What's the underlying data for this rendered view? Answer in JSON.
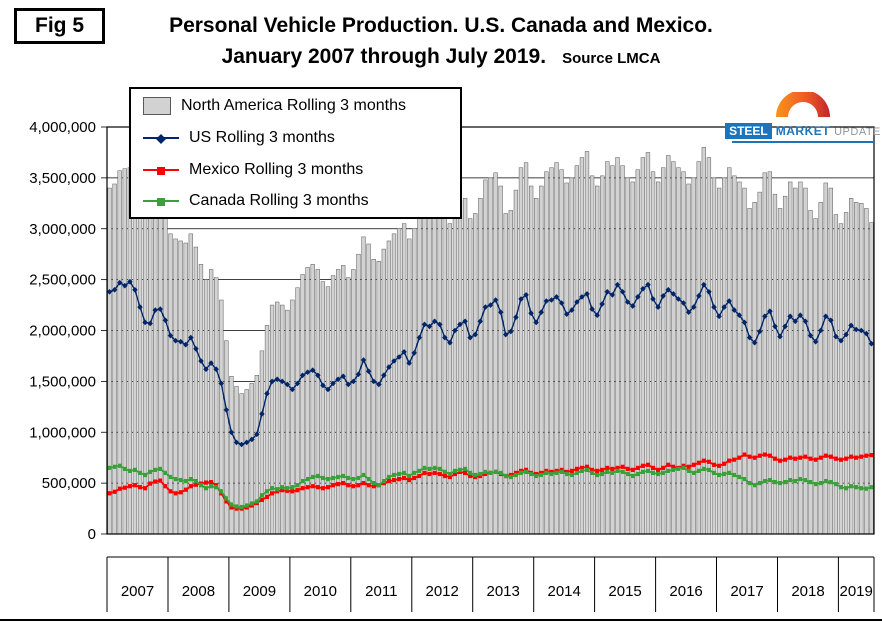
{
  "figure": {
    "fig_label": "Fig 5",
    "title_line1": "Personal Vehicle Production. U.S. Canada and Mexico.",
    "title_line2": "January 2007 through July 2019.",
    "source": "Source LMCA"
  },
  "logo": {
    "word1": "STEEL",
    "word2": "MARKET",
    "word3": "UPDATE"
  },
  "chart_data": {
    "type": "bar",
    "title": "Personal Vehicle Production. U.S. Canada and Mexico. January 2007 through July 2019.",
    "xlabel": "",
    "ylabel": "",
    "x": {
      "start": "2007-01",
      "end": "2019-07",
      "points": 151,
      "year_labels": [
        "2007",
        "2008",
        "2009",
        "2010",
        "2011",
        "2012",
        "2013",
        "2014",
        "2015",
        "2016",
        "2017",
        "2018",
        "2019"
      ]
    },
    "y_axis": {
      "min": 0,
      "max": 4000000,
      "tick_step": 500000,
      "tick_labels": [
        "4,000,000",
        "3,500,000",
        "3,000,000",
        "2,500,000",
        "2,000,000",
        "1,500,000",
        "1,000,000",
        "500,000",
        "0"
      ]
    },
    "grid": "horizontal",
    "legend_position": "top-left-inside",
    "values_unit": "vehicles, stored in thousands",
    "series": [
      {
        "id": "north-america",
        "name": "North America Rolling 3 months",
        "type": "bar",
        "color": "#d2d2d2",
        "border": "#5a5a5a",
        "values": [
          3400,
          3440,
          3570,
          3590,
          3600,
          3520,
          3330,
          3140,
          3180,
          3370,
          3380,
          3250,
          2950,
          2900,
          2880,
          2860,
          2950,
          2820,
          2650,
          2500,
          2600,
          2520,
          2300,
          1900,
          1550,
          1450,
          1380,
          1420,
          1480,
          1560,
          1800,
          2050,
          2250,
          2280,
          2250,
          2200,
          2300,
          2420,
          2550,
          2620,
          2650,
          2600,
          2480,
          2430,
          2540,
          2600,
          2640,
          2520,
          2600,
          2750,
          2920,
          2850,
          2700,
          2680,
          2800,
          2880,
          2950,
          3000,
          3050,
          2900,
          3000,
          3150,
          3300,
          3250,
          3300,
          3280,
          3100,
          3050,
          3200,
          3280,
          3300,
          3100,
          3150,
          3300,
          3480,
          3500,
          3550,
          3420,
          3150,
          3180,
          3380,
          3600,
          3650,
          3420,
          3300,
          3420,
          3560,
          3600,
          3650,
          3580,
          3450,
          3500,
          3620,
          3700,
          3760,
          3520,
          3420,
          3520,
          3660,
          3620,
          3700,
          3620,
          3500,
          3460,
          3580,
          3700,
          3750,
          3560,
          3460,
          3600,
          3720,
          3660,
          3600,
          3560,
          3440,
          3500,
          3660,
          3800,
          3700,
          3500,
          3400,
          3500,
          3600,
          3520,
          3460,
          3400,
          3200,
          3260,
          3360,
          3550,
          3560,
          3340,
          3200,
          3320,
          3460,
          3400,
          3460,
          3400,
          3180,
          3100,
          3260,
          3450,
          3400,
          3140,
          3050,
          3160,
          3300,
          3260,
          3250,
          3200,
          3060
        ]
      },
      {
        "id": "us",
        "name": "US Rolling 3 months",
        "type": "line",
        "color": "#002569",
        "marker": "diamond",
        "values": [
          2380,
          2400,
          2470,
          2440,
          2480,
          2400,
          2230,
          2080,
          2070,
          2200,
          2210,
          2100,
          1950,
          1900,
          1890,
          1860,
          1930,
          1820,
          1700,
          1620,
          1680,
          1620,
          1480,
          1220,
          1000,
          900,
          880,
          900,
          930,
          980,
          1180,
          1380,
          1500,
          1520,
          1500,
          1470,
          1420,
          1480,
          1560,
          1590,
          1610,
          1560,
          1460,
          1420,
          1480,
          1520,
          1550,
          1470,
          1500,
          1570,
          1710,
          1600,
          1500,
          1470,
          1560,
          1640,
          1700,
          1740,
          1790,
          1680,
          1780,
          1930,
          2060,
          2040,
          2090,
          2060,
          1930,
          1880,
          2000,
          2060,
          2090,
          1930,
          1960,
          2090,
          2230,
          2250,
          2300,
          2180,
          1960,
          1990,
          2130,
          2310,
          2350,
          2170,
          2080,
          2180,
          2290,
          2300,
          2330,
          2270,
          2160,
          2200,
          2280,
          2330,
          2360,
          2210,
          2150,
          2260,
          2380,
          2350,
          2450,
          2380,
          2280,
          2240,
          2330,
          2410,
          2450,
          2310,
          2230,
          2340,
          2400,
          2360,
          2310,
          2270,
          2180,
          2230,
          2340,
          2450,
          2380,
          2230,
          2140,
          2230,
          2290,
          2200,
          2150,
          2080,
          1930,
          1880,
          1990,
          2140,
          2190,
          2040,
          1940,
          2040,
          2140,
          2090,
          2150,
          2090,
          1950,
          1890,
          2000,
          2140,
          2100,
          1940,
          1900,
          1960,
          2050,
          2010,
          2000,
          1970,
          1870
        ]
      },
      {
        "id": "mexico",
        "name": "Mexico Rolling 3 months",
        "type": "line",
        "color": "#ff0000",
        "marker": "square",
        "values": [
          400,
          415,
          445,
          455,
          470,
          480,
          460,
          450,
          495,
          515,
          525,
          470,
          420,
          400,
          410,
          435,
          470,
          485,
          495,
          505,
          510,
          480,
          400,
          320,
          260,
          250,
          250,
          260,
          280,
          305,
          335,
          365,
          400,
          420,
          430,
          425,
          420,
          430,
          450,
          460,
          470,
          460,
          450,
          460,
          480,
          490,
          500,
          480,
          470,
          480,
          500,
          480,
          470,
          480,
          500,
          520,
          530,
          540,
          550,
          530,
          550,
          570,
          600,
          590,
          600,
          590,
          570,
          560,
          590,
          610,
          600,
          570,
          560,
          570,
          590,
          600,
          610,
          590,
          570,
          580,
          600,
          620,
          630,
          600,
          590,
          600,
          620,
          610,
          620,
          630,
          610,
          620,
          640,
          650,
          660,
          630,
          620,
          630,
          650,
          640,
          650,
          660,
          640,
          630,
          650,
          670,
          680,
          650,
          630,
          650,
          680,
          660,
          650,
          670,
          660,
          680,
          700,
          720,
          710,
          680,
          670,
          690,
          720,
          730,
          750,
          780,
          760,
          750,
          770,
          780,
          770,
          740,
          720,
          730,
          750,
          740,
          750,
          760,
          740,
          730,
          750,
          770,
          760,
          740,
          730,
          740,
          760,
          750,
          760,
          770,
          775
        ]
      },
      {
        "id": "canada",
        "name": "Canada Rolling 3 months",
        "type": "line",
        "color": "#3aa13a",
        "marker": "square",
        "values": [
          650,
          660,
          670,
          640,
          620,
          630,
          600,
          580,
          610,
          630,
          640,
          600,
          560,
          540,
          530,
          520,
          540,
          520,
          480,
          450,
          470,
          460,
          420,
          350,
          290,
          270,
          265,
          280,
          300,
          320,
          380,
          420,
          450,
          440,
          460,
          450,
          460,
          480,
          520,
          540,
          560,
          570,
          550,
          540,
          550,
          560,
          570,
          550,
          540,
          550,
          580,
          540,
          500,
          480,
          520,
          560,
          580,
          590,
          600,
          570,
          600,
          620,
          650,
          640,
          650,
          640,
          610,
          590,
          620,
          630,
          640,
          600,
          580,
          590,
          610,
          600,
          610,
          600,
          570,
          560,
          580,
          600,
          610,
          590,
          570,
          580,
          600,
          590,
          600,
          610,
          590,
          580,
          600,
          620,
          630,
          600,
          580,
          590,
          610,
          600,
          620,
          610,
          590,
          570,
          590,
          610,
          620,
          600,
          590,
          600,
          620,
          630,
          640,
          650,
          620,
          600,
          620,
          640,
          630,
          600,
          580,
          590,
          600,
          580,
          560,
          540,
          500,
          480,
          500,
          520,
          530,
          510,
          500,
          510,
          530,
          520,
          540,
          530,
          510,
          490,
          500,
          520,
          510,
          490,
          460,
          450,
          470,
          460,
          450,
          445,
          460
        ]
      }
    ]
  }
}
